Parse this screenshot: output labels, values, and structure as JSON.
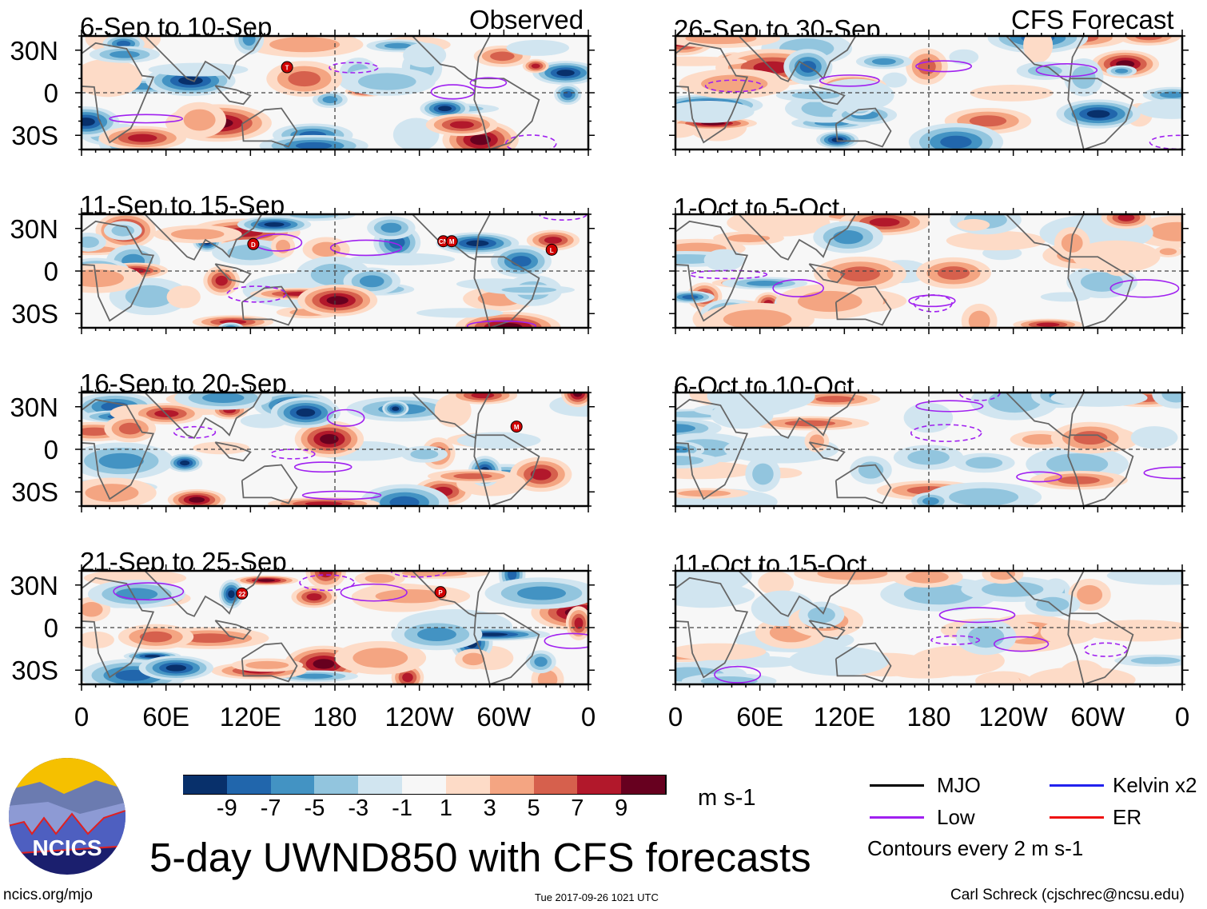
{
  "columns": {
    "left_header": "Observed",
    "right_header": "CFS Forecast"
  },
  "panels_left": [
    {
      "title": "6-Sep to 10-Sep",
      "storms": [
        {
          "label": "T",
          "lon": 146,
          "lat": 18
        }
      ]
    },
    {
      "title": "11-Sep to 15-Sep",
      "storms": [
        {
          "label": "D",
          "lon": 122,
          "lat": 19
        },
        {
          "label": "CN",
          "lon": 257,
          "lat": 21
        },
        {
          "label": "M",
          "lon": 263,
          "lat": 21
        },
        {
          "label": "L",
          "lon": 334,
          "lat": 15
        }
      ]
    },
    {
      "title": "16-Sep to 20-Sep",
      "storms": [
        {
          "label": "M",
          "lon": 309,
          "lat": 16
        }
      ]
    },
    {
      "title": "21-Sep to 25-Sep",
      "storms": [
        {
          "label": "22",
          "lon": 114,
          "lat": 24
        },
        {
          "label": "P",
          "lon": 255,
          "lat": 25
        }
      ]
    }
  ],
  "panels_right": [
    {
      "title": "26-Sep to 30-Sep"
    },
    {
      "title": "1-Oct to 5-Oct"
    },
    {
      "title": "6-Oct to 10-Oct"
    },
    {
      "title": "11-Oct to 15-Oct"
    }
  ],
  "y_ticks": [
    "30N",
    "0",
    "30S"
  ],
  "x_ticks": [
    "0",
    "60E",
    "120E",
    "180",
    "120W",
    "60W",
    "0"
  ],
  "colorbar": {
    "colors": [
      "#08306b",
      "#2166ac",
      "#4393c3",
      "#92c5de",
      "#d1e5f0",
      "#f7f7f7",
      "#fddbc7",
      "#f4a582",
      "#d6604d",
      "#b2182b",
      "#67001f"
    ],
    "labels": [
      "-9",
      "-7",
      "-5",
      "-3",
      "-1",
      "1",
      "3",
      "5",
      "7",
      "9"
    ],
    "units": "m s-1"
  },
  "legend": {
    "items": [
      {
        "label": "MJO",
        "color": "#000000"
      },
      {
        "label": "Kelvin x2",
        "color": "#2222ee"
      },
      {
        "label": "Low",
        "color": "#a020f0"
      },
      {
        "label": "ER",
        "color": "#ee1111"
      }
    ],
    "note": "Contours every 2 m s-1"
  },
  "logo_text": "NCICS",
  "title": "5-day UWND850 with CFS forecasts",
  "footer": {
    "url": "ncics.org/mjo",
    "timestamp": "Tue 2017-09-26 1021 UTC",
    "author": "Carl Schreck (cjschrec@ncsu.edu)"
  }
}
